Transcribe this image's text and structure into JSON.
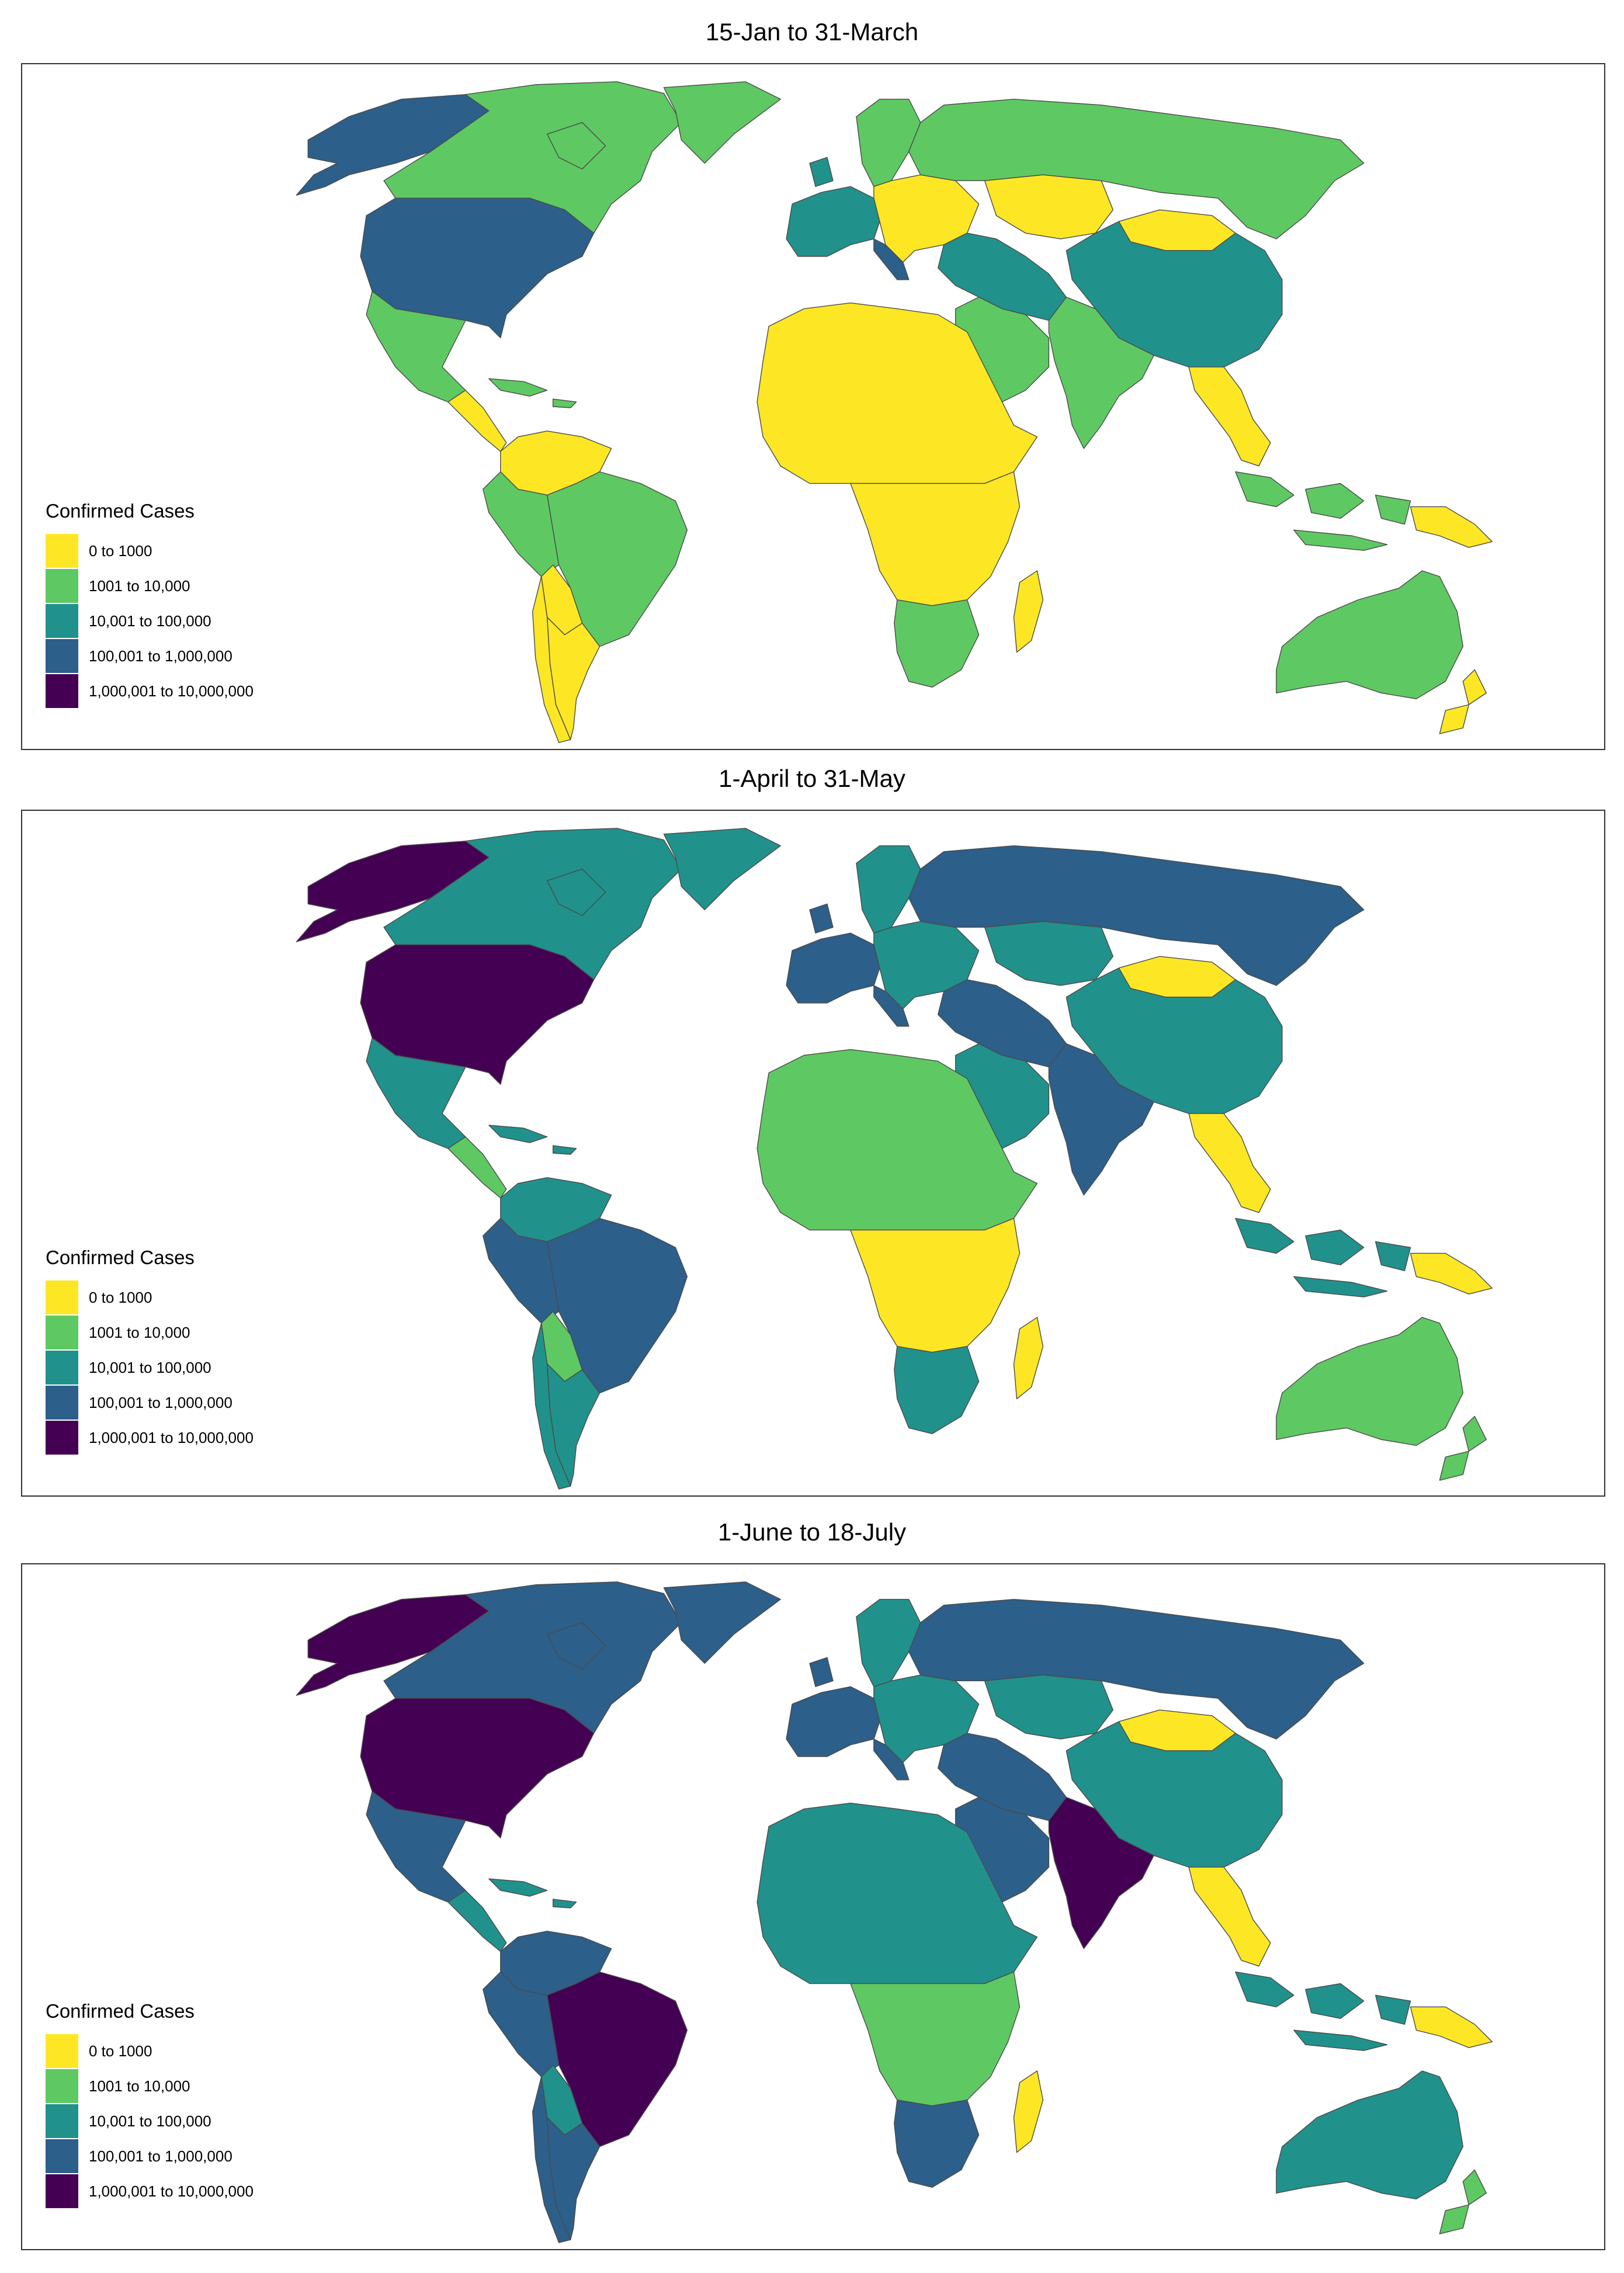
{
  "legend": {
    "title": "Confirmed Cases",
    "bins": [
      {
        "label": "0 to 1000",
        "color": "#fde725"
      },
      {
        "label": "1001 to 10,000",
        "color": "#5ec962"
      },
      {
        "label": "10,001 to 100,000",
        "color": "#21918c"
      },
      {
        "label": "100,001 to 1,000,000",
        "color": "#2c5f8a"
      },
      {
        "label": "1,000,001 to 10,000,000",
        "color": "#440154"
      }
    ]
  },
  "panels": [
    {
      "title": "15-Jan to 31-March",
      "regions": {
        "canada": 1,
        "usa": 3,
        "greenland": 1,
        "alaska": 3,
        "mexico": 1,
        "central_america": 0,
        "caribbean": 1,
        "colombia_venezuela": 0,
        "peru": 1,
        "brazil": 1,
        "bolivia_paraguay": 0,
        "chile": 0,
        "argentina": 0,
        "europe_west": 2,
        "italy": 3,
        "scandinavia": 1,
        "europe_east": 0,
        "russia": 1,
        "kazakhstan": 0,
        "mongolia": 0,
        "china": 2,
        "middle_east": 2,
        "arabia": 1,
        "india": 1,
        "se_asia": 0,
        "africa_north": 0,
        "africa_central": 0,
        "africa_south": 1,
        "madagascar": 0,
        "indonesia": 1,
        "png": 0,
        "australia": 1,
        "new_zealand": 0
      }
    },
    {
      "title": "1-April to 31-May",
      "regions": {
        "canada": 2,
        "usa": 4,
        "greenland": 2,
        "alaska": 4,
        "mexico": 2,
        "central_america": 1,
        "caribbean": 2,
        "colombia_venezuela": 2,
        "peru": 3,
        "brazil": 3,
        "bolivia_paraguay": 1,
        "chile": 2,
        "argentina": 2,
        "europe_west": 3,
        "italy": 3,
        "scandinavia": 2,
        "europe_east": 2,
        "russia": 3,
        "kazakhstan": 2,
        "mongolia": 0,
        "china": 2,
        "middle_east": 3,
        "arabia": 2,
        "india": 3,
        "se_asia": 0,
        "africa_north": 1,
        "africa_central": 0,
        "africa_south": 2,
        "madagascar": 0,
        "indonesia": 2,
        "png": 0,
        "australia": 1,
        "new_zealand": 1
      }
    },
    {
      "title": "1-June to 18-July",
      "regions": {
        "canada": 3,
        "usa": 4,
        "greenland": 3,
        "alaska": 4,
        "mexico": 3,
        "central_america": 2,
        "caribbean": 2,
        "colombia_venezuela": 3,
        "peru": 3,
        "brazil": 4,
        "bolivia_paraguay": 2,
        "chile": 3,
        "argentina": 3,
        "europe_west": 3,
        "italy": 3,
        "scandinavia": 2,
        "europe_east": 2,
        "russia": 3,
        "kazakhstan": 2,
        "mongolia": 0,
        "china": 2,
        "middle_east": 3,
        "arabia": 3,
        "india": 4,
        "se_asia": 0,
        "africa_north": 2,
        "africa_central": 1,
        "africa_south": 3,
        "madagascar": 0,
        "indonesia": 2,
        "png": 0,
        "australia": 2,
        "new_zealand": 1
      }
    }
  ]
}
